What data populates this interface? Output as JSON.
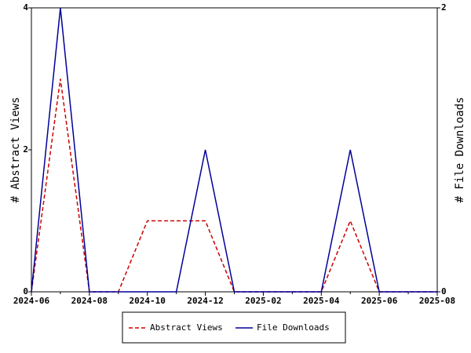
{
  "chart_data": {
    "type": "line",
    "categories": [
      "2024-06",
      null,
      "2024-08",
      null,
      "2024-10",
      null,
      "2024-12",
      null,
      "2025-02",
      null,
      "2025-04",
      null,
      "2025-06",
      null,
      "2025-08"
    ],
    "series": [
      {
        "name": "Abstract Views",
        "color": "#cc0000",
        "dash": true,
        "values": [
          0,
          3,
          0,
          0,
          1,
          1,
          1,
          0,
          0,
          0,
          0,
          1,
          0,
          0,
          0
        ]
      },
      {
        "name": "File Downloads",
        "color": "#000099",
        "axis": "y2",
        "values": [
          0,
          2,
          0,
          0,
          0,
          0,
          1,
          0,
          0,
          0,
          0,
          1,
          0,
          0,
          0
        ]
      }
    ],
    "ylabel": "# Abstract Views",
    "y2label": "# File Downloads",
    "ylim": [
      0,
      4
    ],
    "yticks": [
      0,
      2,
      4
    ],
    "y2lim": [
      0,
      2
    ],
    "y2ticks": [
      0,
      2
    ],
    "legend": "bottom"
  }
}
